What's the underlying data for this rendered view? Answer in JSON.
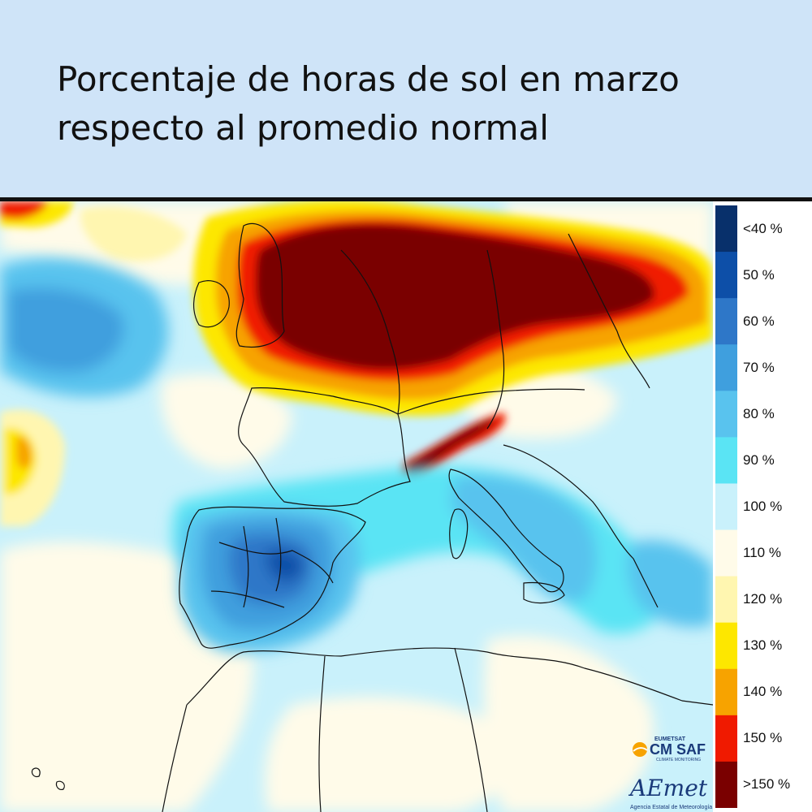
{
  "header": {
    "title_line1": "Porcentaje de horas de sol en marzo",
    "title_line2": "respecto al promedio normal"
  },
  "legend": {
    "bins": [
      {
        "label": "<40 %",
        "color": "#08306b"
      },
      {
        "label": "50 %",
        "color": "#0d4fa8"
      },
      {
        "label": "60 %",
        "color": "#2e77c8"
      },
      {
        "label": "70 %",
        "color": "#3f9fde"
      },
      {
        "label": "80 %",
        "color": "#59c3ee"
      },
      {
        "label": "90 %",
        "color": "#5ae4f4"
      },
      {
        "label": "100 %",
        "color": "#c9f1fb"
      },
      {
        "label": "110 %",
        "color": "#fffbe9"
      },
      {
        "label": "120 %",
        "color": "#fff6b0"
      },
      {
        "label": "130 %",
        "color": "#fde700"
      },
      {
        "label": "140 %",
        "color": "#f7a300"
      },
      {
        "label": "150 %",
        "color": "#f01a00"
      },
      {
        "label": ">150 %",
        "color": "#7a0000"
      }
    ]
  },
  "logos": {
    "cmsaf_top": "EUMETSAT",
    "cmsaf_main": "CM SAF",
    "cmsaf_sub": "CLIMATE MONITORING",
    "aemet_main": "AEmet",
    "aemet_sub": "Agencia Estatal de Meteorología"
  }
}
